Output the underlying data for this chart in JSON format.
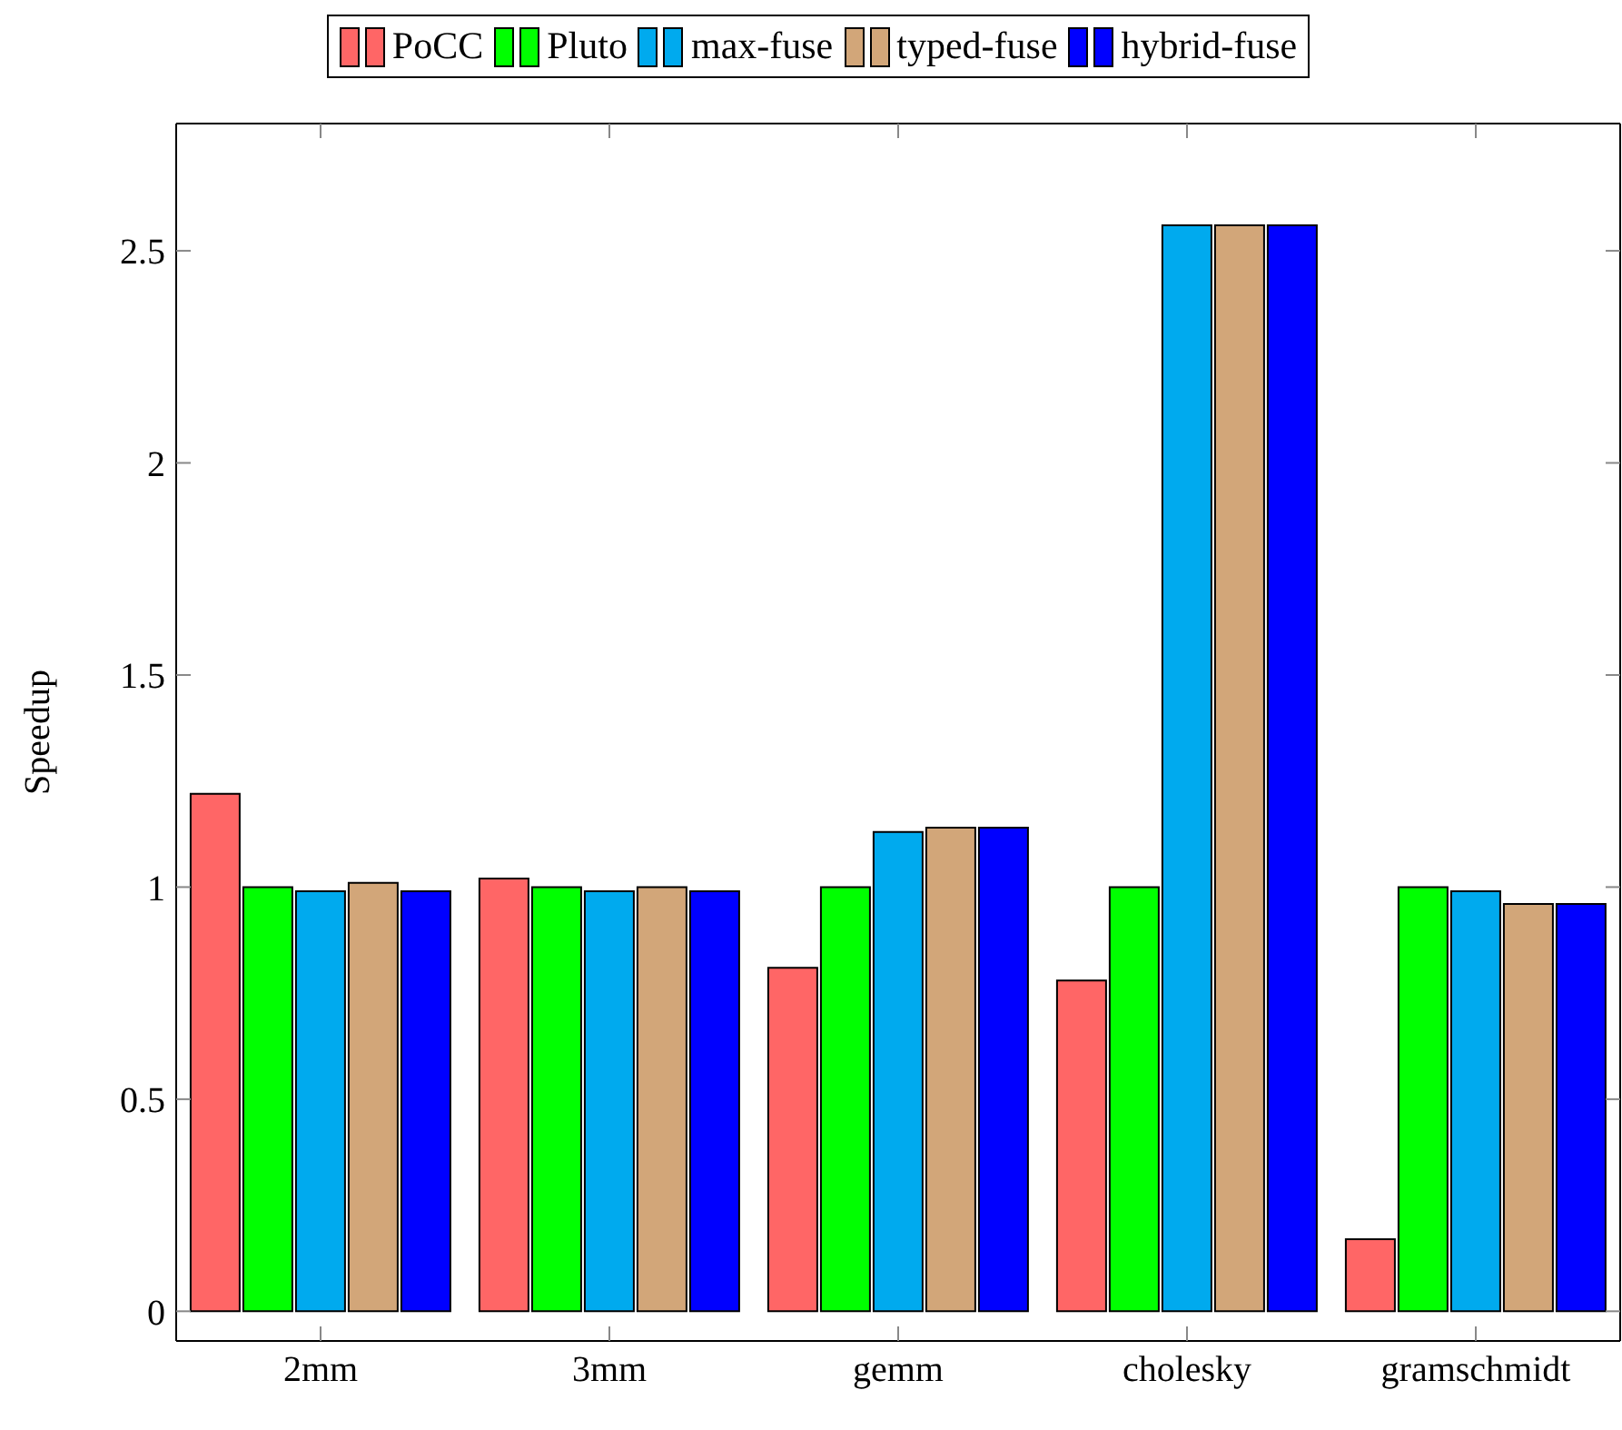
{
  "chart_data": {
    "type": "bar",
    "ylabel": "Speedup",
    "categories": [
      "2mm",
      "3mm",
      "gemm",
      "cholesky",
      "gramschmidt"
    ],
    "series": [
      {
        "name": "PoCC",
        "color": "#ff6666",
        "values": [
          1.22,
          1.02,
          0.81,
          0.78,
          0.17
        ]
      },
      {
        "name": "Pluto",
        "color": "#00ff00",
        "values": [
          1.0,
          1.0,
          1.0,
          1.0,
          1.0
        ]
      },
      {
        "name": "max-fuse",
        "color": "#00aaee",
        "values": [
          0.99,
          0.99,
          1.13,
          2.56,
          0.99
        ]
      },
      {
        "name": "typed-fuse",
        "color": "#d2a679",
        "values": [
          1.01,
          1.0,
          1.14,
          2.56,
          0.96
        ]
      },
      {
        "name": "hybrid-fuse",
        "color": "#0000ff",
        "values": [
          0.99,
          0.99,
          1.14,
          2.56,
          0.96
        ]
      }
    ],
    "ylim": [
      -0.07,
      2.8
    ],
    "yticks": [
      0,
      0.5,
      1,
      1.5,
      2,
      2.5
    ],
    "legend": "top"
  }
}
